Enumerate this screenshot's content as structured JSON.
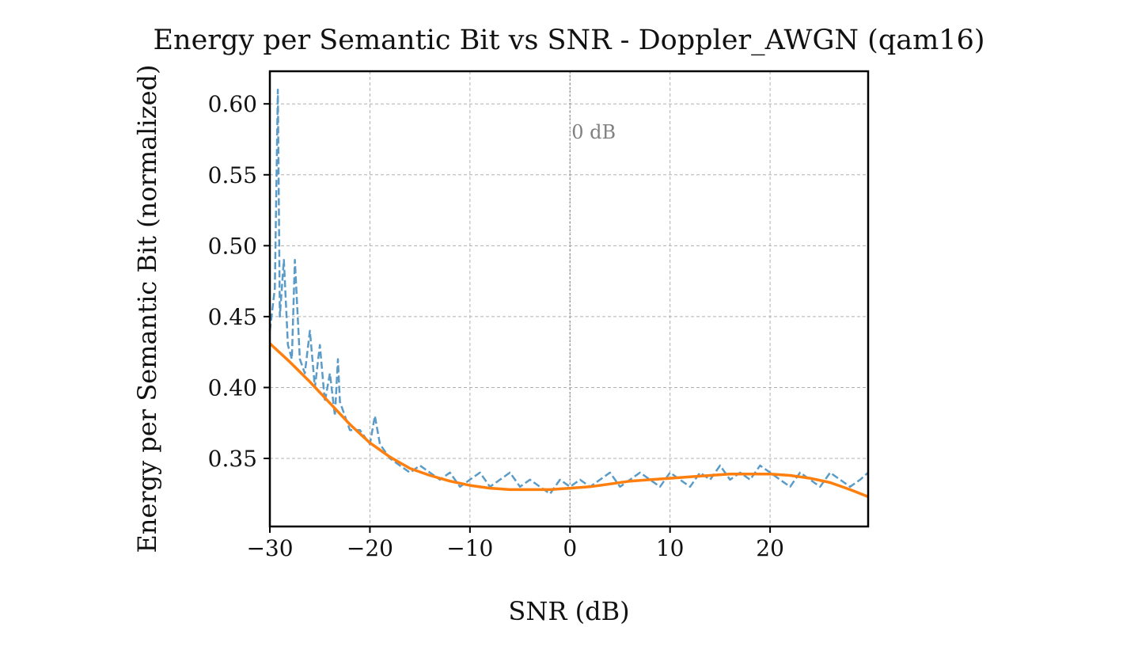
{
  "chart_data": {
    "type": "line",
    "title": "Energy per Semantic Bit vs SNR - Doppler_AWGN (qam16)",
    "xlabel": "SNR (dB)",
    "ylabel": "Energy per Semantic Bit (normalized)",
    "xlim": [
      -30,
      29.8
    ],
    "ylim": [
      0.302,
      0.623
    ],
    "xticks": [
      -30,
      -20,
      -10,
      0,
      10,
      20
    ],
    "xtick_labels": [
      "−30",
      "−20",
      "−10",
      "0",
      "10",
      "20"
    ],
    "yticks": [
      0.35,
      0.4,
      0.45,
      0.5,
      0.55,
      0.6
    ],
    "ytick_labels": [
      "0.35",
      "0.40",
      "0.45",
      "0.50",
      "0.55",
      "0.60"
    ],
    "grid": true,
    "annotations": [
      {
        "text": "0 dB",
        "x": 0,
        "y": 0.58,
        "vline_x": 0
      }
    ],
    "series": [
      {
        "style": "dashed",
        "color": "#5b9bc8",
        "x": [
          -30,
          -29.5,
          -29.2,
          -29,
          -28.6,
          -28.2,
          -27.8,
          -27.5,
          -27,
          -26.5,
          -26,
          -25.5,
          -25,
          -24.5,
          -24,
          -23.5,
          -23.2,
          -23,
          -22,
          -21,
          -20,
          -19.5,
          -19,
          -18,
          -17,
          -16,
          -15,
          -14,
          -13,
          -12,
          -11,
          -10,
          -9,
          -8,
          -7,
          -6,
          -5,
          -4,
          -3,
          -2,
          -1,
          0,
          1,
          2,
          3,
          4,
          5,
          6,
          7,
          8,
          9,
          10,
          11,
          12,
          13,
          14,
          15,
          16,
          17,
          18,
          19,
          20,
          21,
          22,
          23,
          24,
          25,
          26,
          27,
          28,
          29,
          29.8
        ],
        "y": [
          0.44,
          0.47,
          0.61,
          0.45,
          0.49,
          0.43,
          0.42,
          0.49,
          0.42,
          0.41,
          0.44,
          0.4,
          0.43,
          0.39,
          0.41,
          0.38,
          0.42,
          0.39,
          0.37,
          0.37,
          0.36,
          0.38,
          0.36,
          0.35,
          0.345,
          0.34,
          0.345,
          0.34,
          0.335,
          0.34,
          0.33,
          0.335,
          0.34,
          0.33,
          0.335,
          0.34,
          0.33,
          0.335,
          0.33,
          0.325,
          0.335,
          0.33,
          0.335,
          0.33,
          0.335,
          0.34,
          0.33,
          0.335,
          0.34,
          0.335,
          0.33,
          0.34,
          0.335,
          0.33,
          0.34,
          0.335,
          0.345,
          0.335,
          0.34,
          0.335,
          0.345,
          0.34,
          0.335,
          0.33,
          0.34,
          0.335,
          0.33,
          0.34,
          0.335,
          0.33,
          0.335,
          0.34
        ]
      },
      {
        "style": "solid",
        "color": "#ff7f0e",
        "x": [
          -30,
          -28,
          -26,
          -24,
          -22,
          -20,
          -18,
          -16,
          -14,
          -12,
          -10,
          -8,
          -6,
          -4,
          -2,
          0,
          2,
          4,
          6,
          8,
          10,
          12,
          14,
          16,
          18,
          20,
          22,
          24,
          26,
          28,
          29.8
        ],
        "y": [
          0.431,
          0.418,
          0.404,
          0.389,
          0.374,
          0.361,
          0.351,
          0.343,
          0.338,
          0.334,
          0.331,
          0.329,
          0.328,
          0.328,
          0.328,
          0.329,
          0.33,
          0.332,
          0.334,
          0.335,
          0.336,
          0.337,
          0.338,
          0.339,
          0.339,
          0.339,
          0.338,
          0.336,
          0.333,
          0.328,
          0.323
        ]
      }
    ]
  }
}
